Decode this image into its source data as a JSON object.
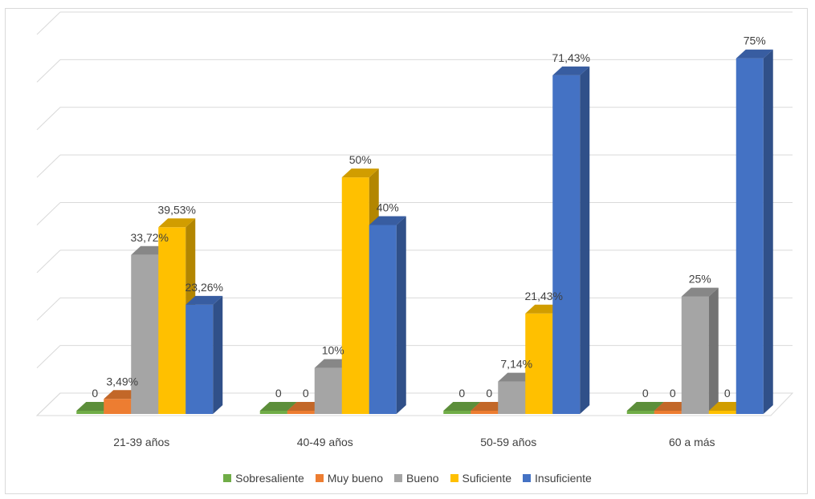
{
  "chart_data": {
    "type": "bar",
    "categories": [
      "21-39 años",
      "40-49 años",
      "50-59 años",
      "60 a más"
    ],
    "series": [
      {
        "name": "Sobresaliente",
        "color": "#70ad47",
        "values": [
          0,
          0,
          0,
          0
        ],
        "labels": [
          "0",
          "0",
          "0",
          "0"
        ]
      },
      {
        "name": "Muy bueno",
        "color": "#ed7d31",
        "values": [
          3.49,
          0,
          0,
          0
        ],
        "labels": [
          "3,49%",
          "0",
          "0",
          "0"
        ]
      },
      {
        "name": "Bueno",
        "color": "#a5a5a5",
        "values": [
          33.72,
          10,
          7.14,
          25
        ],
        "labels": [
          "33,72%",
          "10%",
          "7,14%",
          "25%"
        ]
      },
      {
        "name": "Suficiente",
        "color": "#ffc000",
        "values": [
          39.53,
          50,
          21.43,
          0
        ],
        "labels": [
          "39,53%",
          "50%",
          "21,43%",
          "0"
        ]
      },
      {
        "name": "Insuficiente",
        "color": "#4472c4",
        "values": [
          23.26,
          40,
          71.43,
          75
        ],
        "labels": [
          "23,26%",
          "40%",
          "71,43%",
          "75%"
        ]
      }
    ],
    "ylim": [
      0,
      80
    ],
    "grid": true,
    "legend": "bottom"
  }
}
